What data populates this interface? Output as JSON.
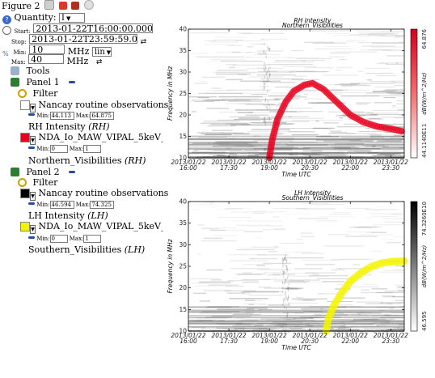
{
  "figure": {
    "title": "Figure 2"
  },
  "controls": {
    "quantity_label": "Quantity:",
    "quantity_value": "I",
    "start_label": "Start:",
    "start_value": "2013-01-22T16:00:00.000",
    "stop_label": "Stop:",
    "stop_value": "2013-01-22T23:59:59.000",
    "min_label": "Min:",
    "min_value": "10",
    "max_label": "Max:",
    "max_value": "40",
    "unit": "MHz",
    "scale": "lin"
  },
  "tree": {
    "tools": "Tools",
    "panels": [
      {
        "label": "Panel 1",
        "filter": "Filter",
        "observation": "Nancay routine observations",
        "obs_min": "44.113",
        "obs_max": "64.875",
        "quantity": "RH Intensity",
        "quantity_abbr": "(RH)",
        "swatch_color": "#e8001c",
        "dataset": "NDA_Io_MAW_VIPAL_5keV_ND_LC",
        "ds_min": "0",
        "ds_max": "1",
        "visibility": "Northern_Visibilities",
        "visibility_abbr": "(RH)"
      },
      {
        "label": "Panel 2",
        "filter": "Filter",
        "observation": "Nancay routine observations",
        "obs_min": "46.594",
        "obs_max": "74.325",
        "quantity": "LH Intensity",
        "quantity_abbr": "(LH)",
        "swatch_color": "#f4f400",
        "dataset": "NDA_Io_MAW_VIPAL_5keV_ND_LC",
        "ds_min": "0",
        "ds_max": "1",
        "visibility": "Southern_Visibilities",
        "visibility_abbr": "(LH)"
      }
    ]
  },
  "chart_data": [
    {
      "type": "heatmap",
      "title": "RH Intensity",
      "subtitle": "Northern_Visibilities",
      "xlabel": "Time UTC",
      "ylabel": "Frequency in MHz",
      "x_ticks": [
        "2013/01/22\n16:00",
        "2013/01/22\n17:30",
        "2013/01/22\n19:00",
        "2013/01/22\n20:30",
        "2013/01/22\n22:00",
        "2013/01/22\n23:30"
      ],
      "y_ticks": [
        10,
        15,
        20,
        25,
        30,
        35,
        40
      ],
      "ylim": [
        10,
        40
      ],
      "colorbar_label": "dB(W/m^2/Hz)",
      "colorbar_max": "64.876",
      "colorbar_min": "44.1140E11",
      "overlay_color": "#e8001c",
      "overlay_curve": [
        [
          19.0,
          10
        ],
        [
          19.1,
          14
        ],
        [
          19.3,
          19
        ],
        [
          19.6,
          23
        ],
        [
          19.9,
          25.5
        ],
        [
          20.3,
          27
        ],
        [
          20.6,
          27.4
        ],
        [
          21.0,
          26
        ],
        [
          21.5,
          23
        ],
        [
          22.0,
          20
        ],
        [
          22.5,
          18.3
        ],
        [
          23.0,
          17.3
        ],
        [
          23.5,
          16.8
        ],
        [
          23.9,
          16.2
        ]
      ]
    },
    {
      "type": "heatmap",
      "title": "LH Intensity",
      "subtitle": "Southern_Visibilities",
      "xlabel": "Time UTC",
      "ylabel": "Frequency in MHz",
      "x_ticks": [
        "2013/01/22\n16:00",
        "2013/01/22\n17:30",
        "2013/01/22\n19:00",
        "2013/01/22\n20:30",
        "2013/01/22\n22:00",
        "2013/01/22\n23:30"
      ],
      "y_ticks": [
        10,
        15,
        20,
        25,
        30,
        35,
        40
      ],
      "ylim": [
        10,
        40
      ],
      "colorbar_label": "dB(W/m^2/Hz)",
      "colorbar_max": "74.3260E10",
      "colorbar_min": "46.595",
      "overlay_color": "#f4f400",
      "overlay_curve": [
        [
          21.1,
          10
        ],
        [
          21.2,
          13
        ],
        [
          21.4,
          16
        ],
        [
          21.7,
          19
        ],
        [
          22.0,
          21.5
        ],
        [
          22.4,
          23.5
        ],
        [
          22.8,
          25
        ],
        [
          23.2,
          25.8
        ],
        [
          23.6,
          26.1
        ],
        [
          24.0,
          26.2
        ]
      ]
    }
  ]
}
